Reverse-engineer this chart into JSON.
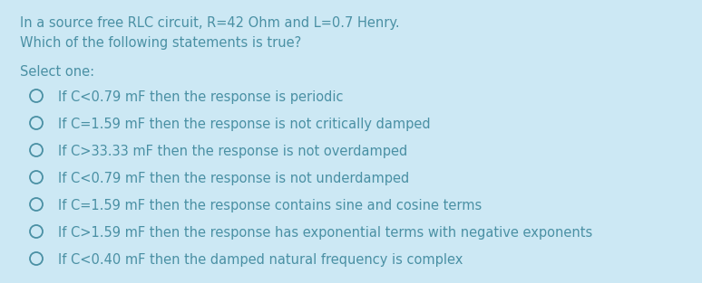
{
  "background_color": "#cce8f4",
  "title_line1": "In a source free RLC circuit, R=42 Ohm and L=0.7 Henry.",
  "title_line2": "Which of the following statements is true?",
  "select_label": "Select one:",
  "options": [
    "If C<0.79 mF then the response is periodic",
    "If C=1.59 mF then the response is not critically damped",
    "If C>33.33 mF then the response is not overdamped",
    "If C<0.79 mF then the response is not underdamped",
    "If C=1.59 mF then the response contains sine and cosine terms",
    "If C>1.59 mF then the response has exponential terms with negative exponents",
    "If C<0.40 mF then the damped natural frequency is complex"
  ],
  "text_color": "#4a90a4",
  "font_size": 10.5,
  "fig_width": 7.74,
  "fig_height": 3.13,
  "dpi": 100
}
